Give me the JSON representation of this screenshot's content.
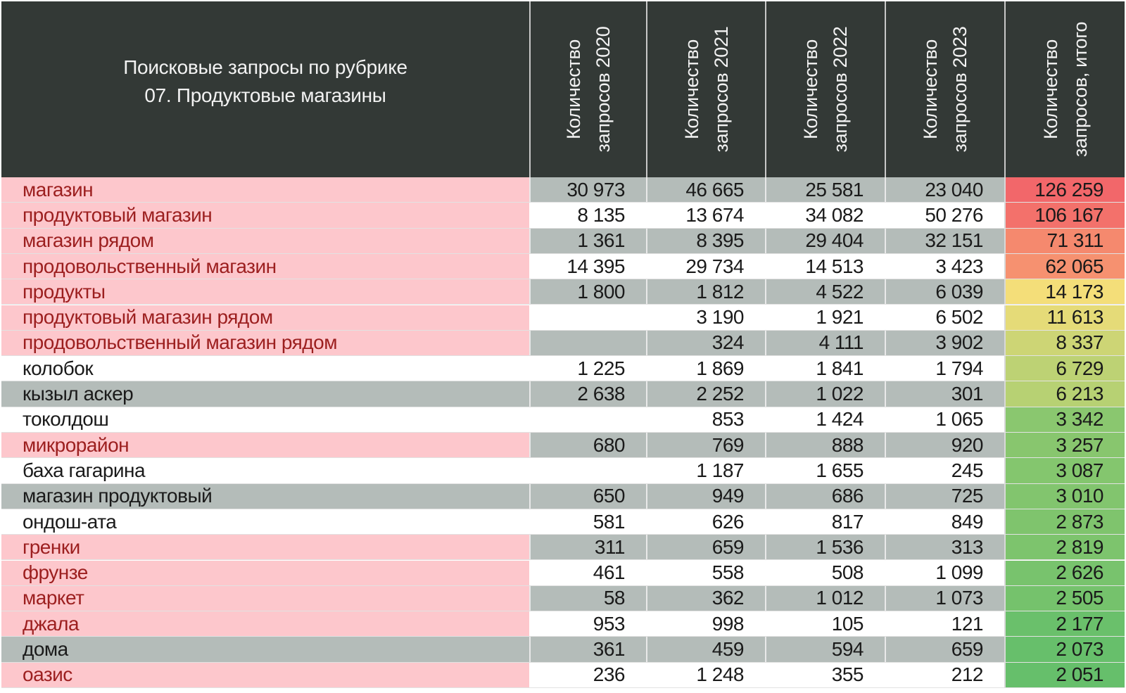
{
  "table": {
    "title_line1": "Поисковые запросы по рубрике",
    "title_line2": "07. Продуктовые магазины",
    "headers": [
      {
        "line1": "Количество",
        "line2": "запросов 2020"
      },
      {
        "line1": "Количество",
        "line2": "запросов 2021"
      },
      {
        "line1": "Количество",
        "line2": "запросов 2022"
      },
      {
        "line1": "Количество",
        "line2": "запросов 2023"
      },
      {
        "line1": "Количество",
        "line2": "запросов, итого"
      }
    ]
  },
  "colors": {
    "header_bg": "#333936",
    "highlight_name_bg": "#fdc7cc",
    "highlight_name_text": "#9c1f1f",
    "plain_name_text": "#1a1a1a",
    "grey_row_bg": "#b4bcb9",
    "white_row_bg": "#ffffff",
    "total_scale_high": "#f2676a",
    "total_scale_mid": "#fde07a",
    "total_scale_low": "#66bf6b"
  },
  "chart_data": {
    "type": "table",
    "title": "Поисковые запросы по рубрике 07. Продуктовые магазины",
    "columns": [
      "Количество запросов 2020",
      "Количество запросов 2021",
      "Количество запросов 2022",
      "Количество запросов 2023",
      "Количество запросов, итого"
    ],
    "rows": [
      {
        "name": "магазин",
        "v2020": "30 973",
        "v2021": "46 665",
        "v2022": "25 581",
        "v2023": "23 040",
        "total": "126 259",
        "total_value": 126259,
        "highlight": true,
        "shade": "grey"
      },
      {
        "name": "продуктовый магазин",
        "v2020": "8 135",
        "v2021": "13 674",
        "v2022": "34 082",
        "v2023": "50 276",
        "total": "106 167",
        "total_value": 106167,
        "highlight": true,
        "shade": "white"
      },
      {
        "name": "магазин рядом",
        "v2020": "1 361",
        "v2021": "8 395",
        "v2022": "29 404",
        "v2023": "32 151",
        "total": "71 311",
        "total_value": 71311,
        "highlight": true,
        "shade": "grey"
      },
      {
        "name": "продовольственный магазин",
        "v2020": "14 395",
        "v2021": "29 734",
        "v2022": "14 513",
        "v2023": "3 423",
        "total": "62 065",
        "total_value": 62065,
        "highlight": true,
        "shade": "white"
      },
      {
        "name": "продукты",
        "v2020": "1 800",
        "v2021": "1 812",
        "v2022": "4 522",
        "v2023": "6 039",
        "total": "14 173",
        "total_value": 14173,
        "highlight": true,
        "shade": "grey"
      },
      {
        "name": "продуктовый магазин рядом",
        "v2020": "",
        "v2021": "3 190",
        "v2022": "1 921",
        "v2023": "6 502",
        "total": "11 613",
        "total_value": 11613,
        "highlight": true,
        "shade": "white"
      },
      {
        "name": "продовольственный магазин рядом",
        "v2020": "",
        "v2021": "324",
        "v2022": "4 111",
        "v2023": "3 902",
        "total": "8 337",
        "total_value": 8337,
        "highlight": true,
        "shade": "grey"
      },
      {
        "name": "колобок",
        "v2020": "1 225",
        "v2021": "1 869",
        "v2022": "1 841",
        "v2023": "1 794",
        "total": "6 729",
        "total_value": 6729,
        "highlight": false,
        "shade": "white"
      },
      {
        "name": "кызыл аскер",
        "v2020": "2 638",
        "v2021": "2 252",
        "v2022": "1 022",
        "v2023": "301",
        "total": "6 213",
        "total_value": 6213,
        "highlight": false,
        "shade": "grey"
      },
      {
        "name": "токолдош",
        "v2020": "",
        "v2021": "853",
        "v2022": "1 424",
        "v2023": "1 065",
        "total": "3 342",
        "total_value": 3342,
        "highlight": false,
        "shade": "white"
      },
      {
        "name": "микрорайон",
        "v2020": "680",
        "v2021": "769",
        "v2022": "888",
        "v2023": "920",
        "total": "3 257",
        "total_value": 3257,
        "highlight": true,
        "shade": "grey"
      },
      {
        "name": "баха гагарина",
        "v2020": "",
        "v2021": "1 187",
        "v2022": "1 655",
        "v2023": "245",
        "total": "3 087",
        "total_value": 3087,
        "highlight": false,
        "shade": "white"
      },
      {
        "name": "магазин продуктовый",
        "v2020": "650",
        "v2021": "949",
        "v2022": "686",
        "v2023": "725",
        "total": "3 010",
        "total_value": 3010,
        "highlight": false,
        "shade": "grey"
      },
      {
        "name": "ондош-ата",
        "v2020": "581",
        "v2021": "626",
        "v2022": "817",
        "v2023": "849",
        "total": "2 873",
        "total_value": 2873,
        "highlight": false,
        "shade": "white"
      },
      {
        "name": "гренки",
        "v2020": "311",
        "v2021": "659",
        "v2022": "1 536",
        "v2023": "313",
        "total": "2 819",
        "total_value": 2819,
        "highlight": true,
        "shade": "grey"
      },
      {
        "name": "фрунзе",
        "v2020": "461",
        "v2021": "558",
        "v2022": "508",
        "v2023": "1 099",
        "total": "2 626",
        "total_value": 2626,
        "highlight": true,
        "shade": "white"
      },
      {
        "name": "маркет",
        "v2020": "58",
        "v2021": "362",
        "v2022": "1 012",
        "v2023": "1 073",
        "total": "2 505",
        "total_value": 2505,
        "highlight": true,
        "shade": "grey"
      },
      {
        "name": "джала",
        "v2020": "953",
        "v2021": "998",
        "v2022": "105",
        "v2023": "121",
        "total": "2 177",
        "total_value": 2177,
        "highlight": true,
        "shade": "white"
      },
      {
        "name": "дома",
        "v2020": "361",
        "v2021": "459",
        "v2022": "594",
        "v2023": "659",
        "total": "2 073",
        "total_value": 2073,
        "highlight": false,
        "shade": "grey"
      },
      {
        "name": "оазис",
        "v2020": "236",
        "v2021": "1 248",
        "v2022": "355",
        "v2023": "212",
        "total": "2 051",
        "total_value": 2051,
        "highlight": true,
        "shade": "white"
      }
    ]
  }
}
